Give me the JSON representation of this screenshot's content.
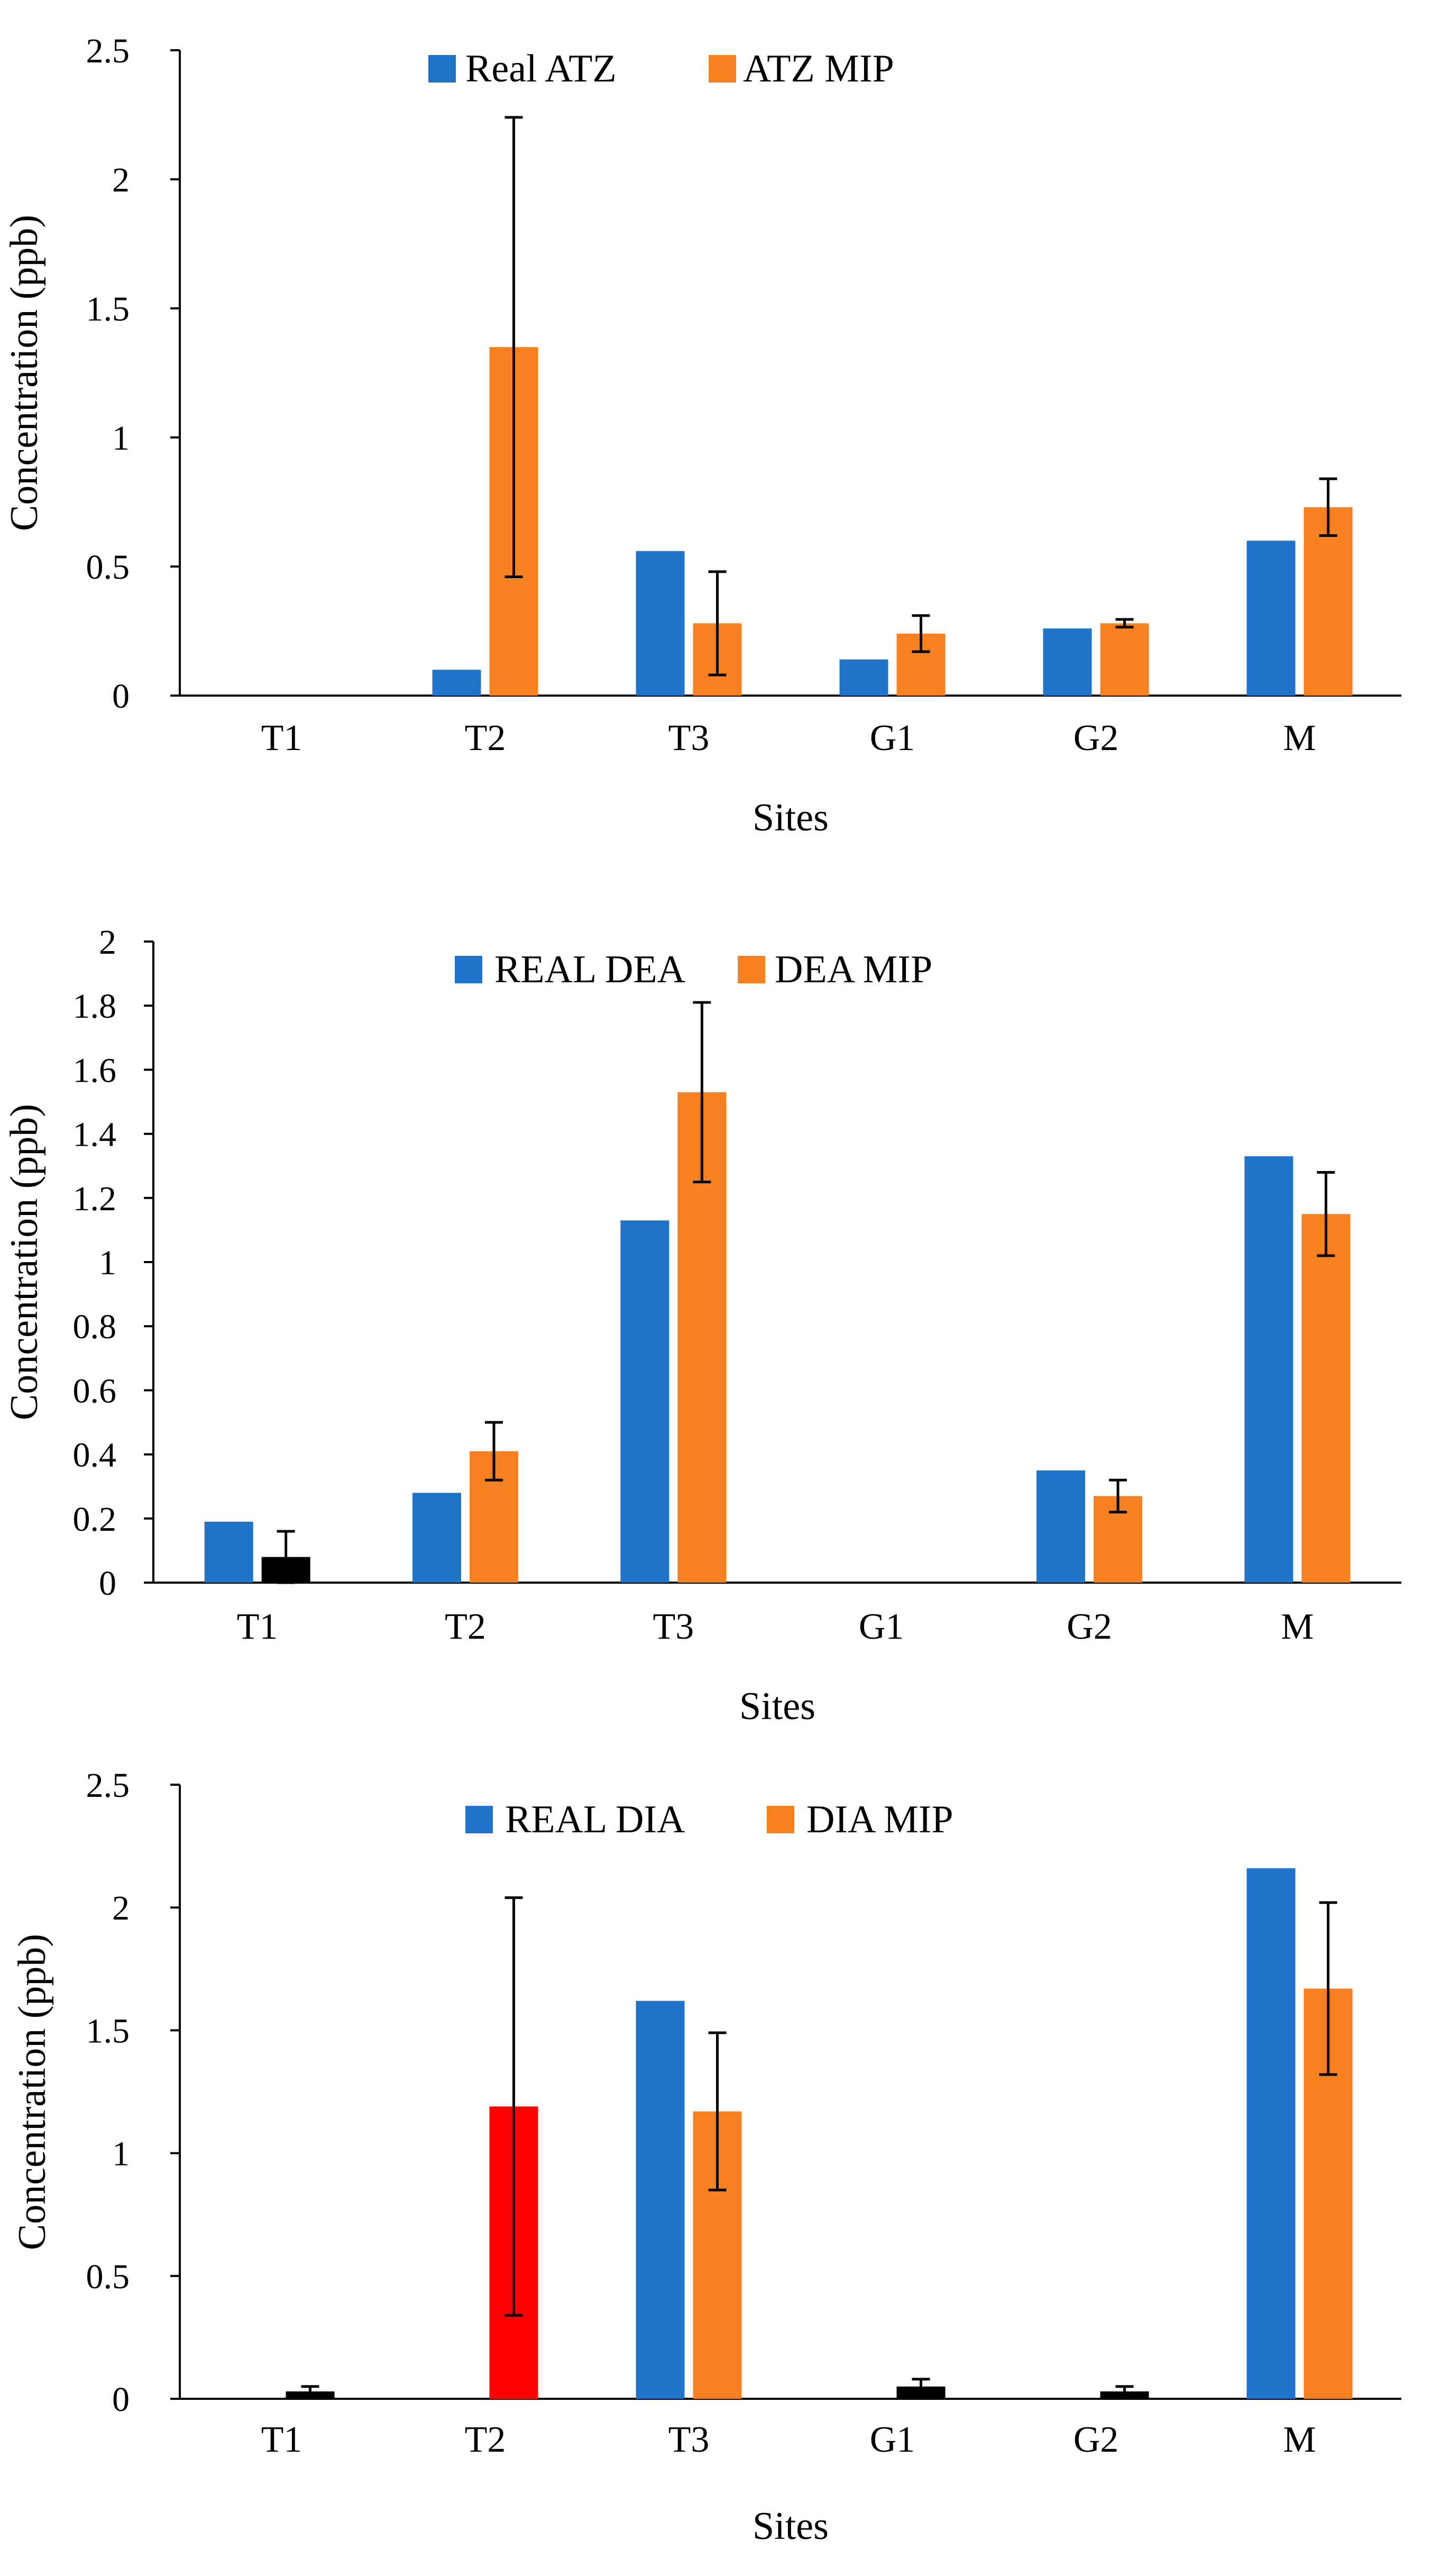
{
  "colors": {
    "real": "#1F73C9",
    "mip": "#F7811E",
    "highlight_black": "#000000",
    "highlight_red": "#FF0000",
    "axis": "#000000"
  },
  "chart_data": [
    {
      "type": "bar",
      "categories": [
        "T1",
        "T2",
        "T3",
        "G1",
        "G2",
        "M"
      ],
      "xlabel": "Sites",
      "ylabel": "Concentration (ppb)",
      "ylim": [
        0,
        2.5
      ],
      "yticks": [
        0,
        0.5,
        1,
        1.5,
        2,
        2.5
      ],
      "ytick_labels": [
        "0",
        "0.5",
        "1",
        "1.5",
        "2",
        "2.5"
      ],
      "legend_position": "top-center",
      "series": [
        {
          "name": "Real ATZ",
          "color_key": "real",
          "values": [
            0,
            0.1,
            0.56,
            0.14,
            0.26,
            0.6
          ],
          "errors": [
            null,
            null,
            null,
            null,
            null,
            null
          ]
        },
        {
          "name": "ATZ MIP",
          "color_key": "mip",
          "values": [
            0,
            1.35,
            0.28,
            0.24,
            0.28,
            0.73
          ],
          "errors": [
            null,
            0.89,
            0.2,
            0.07,
            0.015,
            0.11
          ]
        }
      ]
    },
    {
      "type": "bar",
      "categories": [
        "T1",
        "T2",
        "T3",
        "G1",
        "G2",
        "M"
      ],
      "xlabel": "Sites",
      "ylabel": "Concentration (ppb)",
      "ylim": [
        0,
        2
      ],
      "yticks": [
        0,
        0.2,
        0.4,
        0.6,
        0.8,
        1,
        1.2,
        1.4,
        1.6,
        1.8,
        2
      ],
      "ytick_labels": [
        "0",
        "0.2",
        "0.4",
        "0.6",
        "0.8",
        "1",
        "1.2",
        "1.4",
        "1.6",
        "1.8",
        "2"
      ],
      "legend_position": "top-center",
      "series": [
        {
          "name": "REAL DEA",
          "color_key": "real",
          "values": [
            0.19,
            0.28,
            1.13,
            0,
            0.35,
            1.33
          ],
          "errors": [
            null,
            null,
            null,
            null,
            null,
            null
          ]
        },
        {
          "name": "DEA MIP",
          "color_key": "mip",
          "values": [
            0.08,
            0.41,
            1.53,
            0,
            0.27,
            1.15
          ],
          "errors": [
            0.08,
            0.09,
            0.28,
            null,
            0.05,
            0.13
          ],
          "point_colors": [
            "highlight_black",
            null,
            null,
            null,
            null,
            null
          ]
        }
      ]
    },
    {
      "type": "bar",
      "categories": [
        "T1",
        "T2",
        "T3",
        "G1",
        "G2",
        "M"
      ],
      "xlabel": "Sites",
      "ylabel": "Concentration (ppb)",
      "ylim": [
        0,
        2.5
      ],
      "yticks": [
        0,
        0.5,
        1,
        1.5,
        2,
        2.5
      ],
      "ytick_labels": [
        "0",
        "0.5",
        "1",
        "1.5",
        "2",
        "2.5"
      ],
      "legend_position": "top-center",
      "series": [
        {
          "name": "REAL DIA",
          "color_key": "real",
          "values": [
            0,
            0,
            1.62,
            0,
            0,
            2.16
          ],
          "errors": [
            null,
            null,
            null,
            null,
            null,
            null
          ]
        },
        {
          "name": "DIA MIP",
          "color_key": "mip",
          "values": [
            0.03,
            1.19,
            1.17,
            0.05,
            0.03,
            1.67
          ],
          "errors": [
            0.02,
            0.85,
            0.32,
            0.03,
            0.02,
            0.35
          ],
          "point_colors": [
            "highlight_black",
            "highlight_red",
            null,
            "highlight_black",
            "highlight_black",
            null
          ]
        }
      ]
    }
  ]
}
